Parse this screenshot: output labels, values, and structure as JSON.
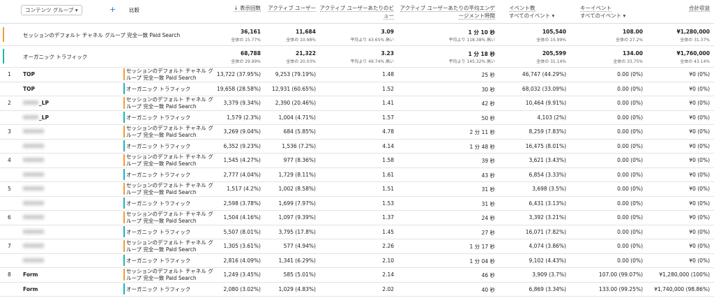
{
  "header": {
    "dimension": "コンテンツ グループ ▾",
    "add": "+",
    "compare": "比較",
    "columns": [
      {
        "title": "↓ 表示回数"
      },
      {
        "title": "アクティブ ユーザー"
      },
      {
        "title": "アクティブ ユーザーあたりのビュー"
      },
      {
        "title": "アクティブ ユーザーあたりの平均エンゲージメント時間"
      },
      {
        "title": "イベント数",
        "filter": "すべてのイベント ▾"
      },
      {
        "title": "キーイベント",
        "filter": "すべてのイベント ▾"
      },
      {
        "title": "合計収益"
      }
    ]
  },
  "summary": [
    {
      "label": "セッションのデフォルト チャネル グループ 完全一致 Paid Search",
      "cells": [
        [
          "36,161",
          "全体の 15.77%"
        ],
        [
          "11,684",
          "全体の 10.98%"
        ],
        [
          "3.09",
          "平均より 43.65% 高い"
        ],
        [
          "1 分 10 秒",
          "平均より 118.38% 高い"
        ],
        [
          "105,540",
          "全体の 15.99%"
        ],
        [
          "108.00",
          "全体の 27.2%"
        ],
        [
          "¥1,280,000",
          "全体の 31.37%"
        ]
      ]
    },
    {
      "label": "オーガニック トラフィック",
      "cells": [
        [
          "68,788",
          "全体の 29.99%"
        ],
        [
          "21,322",
          "全体の 20.03%"
        ],
        [
          "3.23",
          "平均より 49.74% 高い"
        ],
        [
          "1 分 18 秒",
          "平均より 145.32% 高い"
        ],
        [
          "205,599",
          "全体の 31.14%"
        ],
        [
          "134.00",
          "全体の 33.75%"
        ],
        [
          "¥1,760,000",
          "全体の 43.14%"
        ]
      ]
    }
  ],
  "table": {
    "rows": [
      {
        "index": "1",
        "group": "TOP",
        "channel": "セッションのデフォルト チャネル グループ 完全一致 Paid Search",
        "cells": [
          "13,722 (37.95%)",
          "9,253 (79.19%)",
          "1.48",
          "25 秒",
          "46,747 (44.29%)",
          "0.00 (0%)",
          "¥0 (0%)"
        ]
      },
      {
        "group": "TOP",
        "channel": "オーガニック トラフィック",
        "cells": [
          "19,658 (28.58%)",
          "12,931 (60.65%)",
          "1.52",
          "30 秒",
          "68,032 (33.09%)",
          "0.00 (0%)",
          "¥0 (0%)"
        ]
      },
      {
        "index": "2",
        "group": "_LP",
        "channel": "セッションのデフォルト チャネル グループ 完全一致 Paid Search",
        "cells": [
          "3,379 (9.34%)",
          "2,390 (20.46%)",
          "1.41",
          "42 秒",
          "10,464 (9.91%)",
          "0.00 (0%)",
          "¥0 (0%)"
        ]
      },
      {
        "group": "_LP",
        "channel": "オーガニック トラフィック",
        "cells": [
          "1,579 (2.3%)",
          "1,004 (4.71%)",
          "1.57",
          "50 秒",
          "4,103 (2%)",
          "0.00 (0%)",
          "¥0 (0%)"
        ]
      },
      {
        "index": "3",
        "channel": "セッションのデフォルト チャネル グループ 完全一致 Paid Search",
        "cells": [
          "3,269 (9.04%)",
          "684 (5.85%)",
          "4.78",
          "2 分 11 秒",
          "8,259 (7.83%)",
          "0.00 (0%)",
          "¥0 (0%)"
        ]
      },
      {
        "channel": "オーガニック トラフィック",
        "cells": [
          "6,352 (9.23%)",
          "1,536 (7.2%)",
          "4.14",
          "1 分 48 秒",
          "16,475 (8.01%)",
          "0.00 (0%)",
          "¥0 (0%)"
        ]
      },
      {
        "index": "4",
        "channel": "セッションのデフォルト チャネル グループ 完全一致 Paid Search",
        "cells": [
          "1,545 (4.27%)",
          "977 (8.36%)",
          "1.58",
          "39 秒",
          "3,621 (3.43%)",
          "0.00 (0%)",
          "¥0 (0%)"
        ]
      },
      {
        "channel": "オーガニック トラフィック",
        "cells": [
          "2,777 (4.04%)",
          "1,729 (8.11%)",
          "1.61",
          "43 秒",
          "6,854 (3.33%)",
          "0.00 (0%)",
          "¥0 (0%)"
        ]
      },
      {
        "index": "5",
        "channel": "セッションのデフォルト チャネル グループ 完全一致 Paid Search",
        "cells": [
          "1,517 (4.2%)",
          "1,002 (8.58%)",
          "1.51",
          "31 秒",
          "3,698 (3.5%)",
          "0.00 (0%)",
          "¥0 (0%)"
        ]
      },
      {
        "channel": "オーガニック トラフィック",
        "cells": [
          "2,598 (3.78%)",
          "1,699 (7.97%)",
          "1.53",
          "31 秒",
          "6,431 (3.13%)",
          "0.00 (0%)",
          "¥0 (0%)"
        ]
      },
      {
        "index": "6",
        "channel": "セッションのデフォルト チャネル グループ 完全一致 Paid Search",
        "cells": [
          "1,504 (4.16%)",
          "1,097 (9.39%)",
          "1.37",
          "24 秒",
          "3,392 (3.21%)",
          "0.00 (0%)",
          "¥0 (0%)"
        ]
      },
      {
        "channel": "オーガニック トラフィック",
        "cells": [
          "5,507 (8.01%)",
          "3,795 (17.8%)",
          "1.45",
          "27 秒",
          "16,071 (7.82%)",
          "0.00 (0%)",
          "¥0 (0%)"
        ]
      },
      {
        "index": "7",
        "channel": "セッションのデフォルト チャネル グループ 完全一致 Paid Search",
        "cells": [
          "1,305 (3.61%)",
          "577 (4.94%)",
          "2.26",
          "1 分 17 秒",
          "4,074 (3.86%)",
          "0.00 (0%)",
          "¥0 (0%)"
        ]
      },
      {
        "channel": "オーガニック トラフィック",
        "cells": [
          "2,816 (4.09%)",
          "1,341 (6.29%)",
          "2.10",
          "1 分 04 秒",
          "9,102 (4.43%)",
          "0.00 (0%)",
          "¥0 (0%)"
        ]
      },
      {
        "index": "8",
        "group": "Form",
        "channel": "セッションのデフォルト チャネル グループ 完全一致 Paid Search",
        "cells": [
          "1,249 (3.45%)",
          "585 (5.01%)",
          "2.14",
          "46 秒",
          "3,909 (3.7%)",
          "107.00 (99.07%)",
          "¥1,280,000 (100%)"
        ]
      },
      {
        "group": "Form",
        "channel": "オーガニック トラフィック",
        "cells": [
          "2,080 (3.02%)",
          "1,029 (4.83%)",
          "2.02",
          "40 秒",
          "6,869 (3.34%)",
          "133.00 (99.25%)",
          "¥1,740,000 (98.86%)"
        ]
      }
    ]
  }
}
